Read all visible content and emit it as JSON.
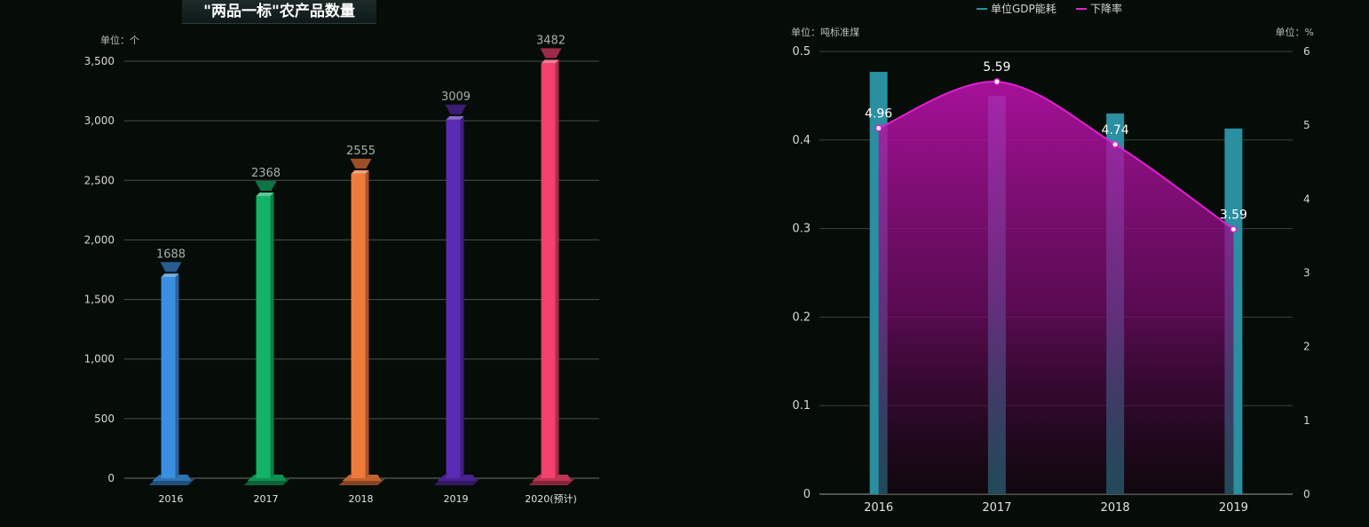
{
  "chart_data": [
    {
      "type": "bar",
      "title": "\"两品一标\"农产品数量",
      "unit_label": "单位：个",
      "categories": [
        "2016",
        "2017",
        "2018",
        "2019",
        "2020(预计)"
      ],
      "values": [
        1688,
        2368,
        2555,
        3009,
        3482
      ],
      "ylim": [
        0,
        3500
      ],
      "yticks": [
        "0",
        "500",
        "1,000",
        "1,500",
        "2,000",
        "2,500",
        "3,000",
        "3,500"
      ],
      "grid": true,
      "colors": [
        "#3b8fe0",
        "#13b467",
        "#f07a3c",
        "#5b2bb3",
        "#f1416c"
      ]
    },
    {
      "type": "bar+line",
      "categories": [
        "2016",
        "2017",
        "2018",
        "2019"
      ],
      "legend": [
        "单位GDP能耗",
        "下降率"
      ],
      "legend_position": "top",
      "left_unit": "单位：吨标准煤",
      "right_unit": "单位：%",
      "series": [
        {
          "name": "单位GDP能耗",
          "type": "bar",
          "axis": "left",
          "values": [
            0.477,
            0.45,
            0.43,
            0.413
          ],
          "color": "#2a8fa0"
        },
        {
          "name": "下降率",
          "type": "line",
          "axis": "right",
          "smooth": true,
          "area": true,
          "values": [
            4.96,
            5.59,
            4.74,
            3.59
          ],
          "color": "#e020d0"
        }
      ],
      "left_ylim": [
        0,
        0.5
      ],
      "left_ticks": [
        "0",
        "0.1",
        "0.2",
        "0.3",
        "0.4",
        "0.5"
      ],
      "right_ylim": [
        0,
        6
      ],
      "right_ticks": [
        "0",
        "1",
        "2",
        "3",
        "4",
        "5",
        "6"
      ],
      "grid": true
    }
  ]
}
